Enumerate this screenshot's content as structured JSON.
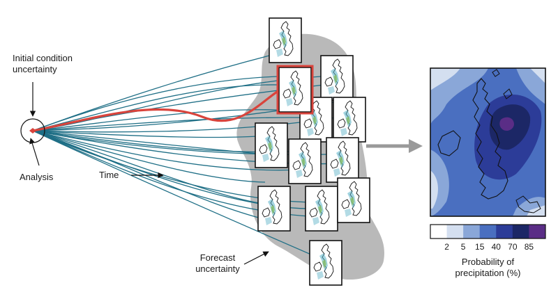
{
  "labels": {
    "initial_line1": "Initial condition",
    "initial_line2": "uncertainty",
    "analysis": "Analysis",
    "time": "Time",
    "forecast_line1": "Forecast",
    "forecast_line2": "uncertainty",
    "prob_line1": "Probability of",
    "prob_line2": "precipitation (%)"
  },
  "legend": {
    "ticks": [
      "2",
      "5",
      "15",
      "40",
      "70",
      "85"
    ],
    "colors": [
      "#ffffff",
      "#d4dff0",
      "#8aa7d8",
      "#4a6fc0",
      "#2c3c98",
      "#1c2766",
      "#5a2d86"
    ]
  },
  "colors": {
    "trajectory": "#1f6f86",
    "analysis_track": "#d9443c",
    "forecast_blob": "#b9b9b9",
    "arrow_gray": "#9a9a9a"
  }
}
